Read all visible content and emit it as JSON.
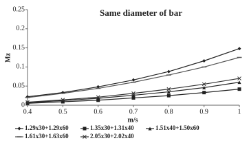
{
  "chart_data": {
    "type": "line",
    "title": "Same diameter of bar",
    "x_label": "m/s",
    "y_label": "Mz",
    "x": [
      0.4,
      0.5,
      0.6,
      0.7,
      0.8,
      0.9,
      1
    ],
    "xlim": [
      0.4,
      1
    ],
    "xticks": [
      0.4,
      0.5,
      0.6,
      0.7,
      0.8,
      0.9,
      1
    ],
    "ylim": [
      0,
      0.25
    ],
    "yticks": [
      0,
      0.05,
      0.1,
      0.15,
      0.2,
      0.25
    ],
    "grid": false,
    "series": [
      {
        "name": "1.29x30+1.29x60",
        "color": "#222222",
        "values": [
          0.022,
          0.033,
          0.048,
          0.066,
          0.088,
          0.116,
          0.148
        ]
      },
      {
        "name": "1.35x30+1.31x40",
        "color": "#222222",
        "values": [
          0.005,
          0.009,
          0.013,
          0.019,
          0.025,
          0.033,
          0.042
        ]
      },
      {
        "name": "1.51x40+1.50x60",
        "color": "#222222",
        "values": [
          0.007,
          0.012,
          0.018,
          0.026,
          0.035,
          0.046,
          0.06
        ]
      },
      {
        "name": "1.61x30+1.63x60",
        "color": "#555555",
        "values": [
          0.02,
          0.031,
          0.044,
          0.06,
          0.079,
          0.1,
          0.125
        ]
      },
      {
        "name": "2.05x30+2.02x40",
        "color": "#333333",
        "values": [
          0.008,
          0.014,
          0.021,
          0.031,
          0.042,
          0.055,
          0.07
        ]
      }
    ]
  }
}
